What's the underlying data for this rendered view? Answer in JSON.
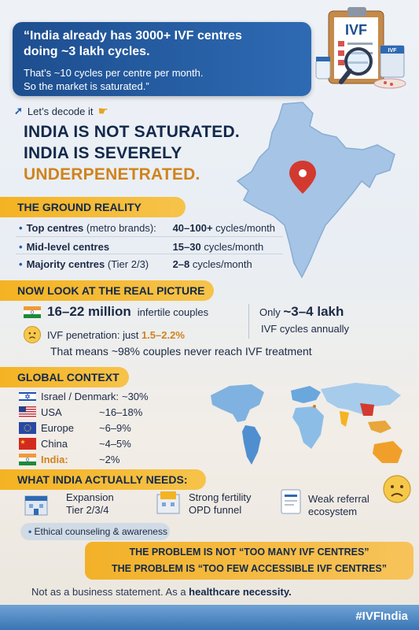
{
  "quote": {
    "line1": "“India already has 3000+ IVF centres",
    "line2": "doing ~3 lakh cycles.",
    "line3": "That’s ~10 cycles per centre per month.",
    "line4": "So the market is saturated.”"
  },
  "clipboard_label": "IVF",
  "clipboard_small_label": "IVF",
  "decode": {
    "label": "Let’s decode it"
  },
  "headline": {
    "line1a": "INDIA IS ",
    "line1b": "NOT SATURATED.",
    "line2": "INDIA IS SEVERELY",
    "line3": "UNDERPENETRATED."
  },
  "ground": {
    "title": "THE GROUND REALITY",
    "rows": [
      {
        "label_bold": "Top centres",
        "label_rest": " (metro brands):",
        "num": "40–100+",
        "unit": " cycles/month"
      },
      {
        "label_bold": "Mid-level centres",
        "label_rest": "",
        "num": "15–30",
        "unit": " cycles/month"
      },
      {
        "label_bold": "Majority centres",
        "label_rest": " (Tier 2/3)",
        "num": "2–8",
        "unit": " cycles/month"
      }
    ]
  },
  "real": {
    "title": "NOW LOOK AT THE REAL PICTURE",
    "couples_big": "16–22 million",
    "couples_rest": "infertile couples",
    "penetration_label": "IVF penetration: just ",
    "penetration_value": "1.5–2.2%",
    "only_label": "Only ",
    "only_value": "~3–4 lakh",
    "cycles_label": "IVF cycles annually",
    "means": "That means ~98% couples never reach IVF treatment"
  },
  "global": {
    "title": "GLOBAL CONTEXT",
    "rows": [
      {
        "name": "Israel / Denmark:",
        "value": "~30%"
      },
      {
        "name": "USA",
        "value": "~16–18%"
      },
      {
        "name": "Europe",
        "value": "~6–9%"
      },
      {
        "name": "China",
        "value": "~4–5%"
      },
      {
        "name": "India:",
        "value": "~2%"
      }
    ]
  },
  "needs": {
    "title": "WHAT INDIA ACTUALLY NEEDS:",
    "item1a": "Expansion",
    "item1b": "Tier 2/3/4",
    "item2a": "Strong fertility",
    "item2b": "OPD funnel",
    "item3a": "Weak referral",
    "item3b": "ecosystem",
    "item4": "Ethical counseling & awareness"
  },
  "problem": {
    "line1": "THE PROBLEM IS NOT “TOO MANY IVF CENTRES”",
    "line2": "THE PROBLEM IS “TOO FEW ACCESSIBLE IVF CENTRES”"
  },
  "footer": {
    "text": "Not as a business statement. As a ",
    "bold": "healthcare necessity."
  },
  "hashtag": "#IVFIndia",
  "colors": {
    "navy": "#13294b",
    "orange": "#d0831c",
    "yellow": "#f4b323",
    "blue": "#1d4e8f"
  }
}
